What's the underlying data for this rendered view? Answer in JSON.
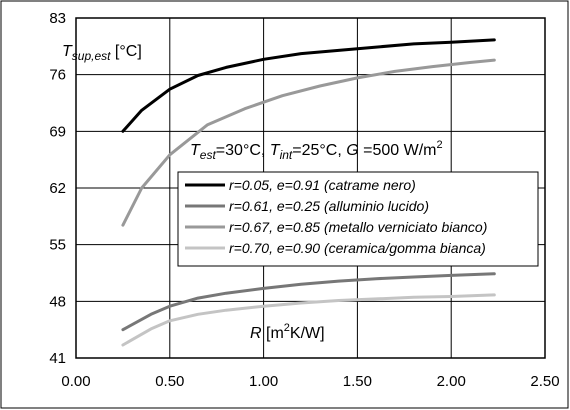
{
  "chart_data": {
    "type": "line",
    "xlim": [
      0.0,
      2.5
    ],
    "ylim": [
      41,
      83
    ],
    "x_ticks": [
      "0.00",
      "0.50",
      "1.00",
      "1.50",
      "2.00",
      "2.50"
    ],
    "y_ticks": [
      "41",
      "48",
      "55",
      "62",
      "69",
      "76",
      "83"
    ],
    "grid": true,
    "legend_position": "center-right",
    "annotations": {
      "y_axis_label": {
        "main": "T",
        "sub": "sup,est",
        "unit": " [°C]"
      },
      "x_axis_label": {
        "main": "R",
        "unit_pre": " [m",
        "sup": "2",
        "unit_post": "K/W]"
      },
      "conditions": {
        "t_est": "T",
        "t_est_sub": "est",
        "t_est_val": "=30°C, ",
        "t_int": "T",
        "t_int_sub": "int",
        "t_int_val": "=25°C, ",
        "g": "G",
        "g_val": " =500 W/m",
        "g_sup": "2"
      }
    },
    "series": [
      {
        "name": "r=0.05, e=0.91 (catrame nero)",
        "color": "#000000",
        "x": [
          0.25,
          0.35,
          0.5,
          0.65,
          0.8,
          1.0,
          1.2,
          1.4,
          1.6,
          1.8,
          2.0,
          2.23
        ],
        "y": [
          69.0,
          71.6,
          74.2,
          75.9,
          76.9,
          77.9,
          78.6,
          79.0,
          79.4,
          79.8,
          80.0,
          80.3
        ]
      },
      {
        "name": "r=0.61, e=0.25 (alluminio lucido)",
        "color": "#777777",
        "x": [
          0.25,
          0.4,
          0.5,
          0.65,
          0.8,
          1.0,
          1.2,
          1.4,
          1.6,
          1.8,
          2.0,
          2.23
        ],
        "y": [
          44.5,
          46.4,
          47.4,
          48.4,
          49.0,
          49.6,
          50.1,
          50.5,
          50.8,
          51.0,
          51.2,
          51.4
        ]
      },
      {
        "name": "r=0.67, e=0.85 (metallo verniciato bianco)",
        "color": "#999999",
        "x": [
          0.25,
          0.35,
          0.5,
          0.7,
          0.9,
          1.1,
          1.3,
          1.5,
          1.7,
          1.9,
          2.1,
          2.23
        ],
        "y": [
          57.4,
          62.0,
          66.1,
          69.8,
          71.8,
          73.4,
          74.6,
          75.6,
          76.4,
          77.0,
          77.5,
          77.8
        ]
      },
      {
        "name": "r=0.70, e=0.90 (ceramica/gomma bianca)",
        "color": "#c4c4c4",
        "x": [
          0.25,
          0.4,
          0.5,
          0.65,
          0.8,
          1.0,
          1.2,
          1.4,
          1.6,
          1.8,
          2.0,
          2.23
        ],
        "y": [
          42.6,
          44.6,
          45.6,
          46.4,
          46.9,
          47.4,
          47.8,
          48.1,
          48.3,
          48.5,
          48.6,
          48.8
        ]
      }
    ]
  }
}
